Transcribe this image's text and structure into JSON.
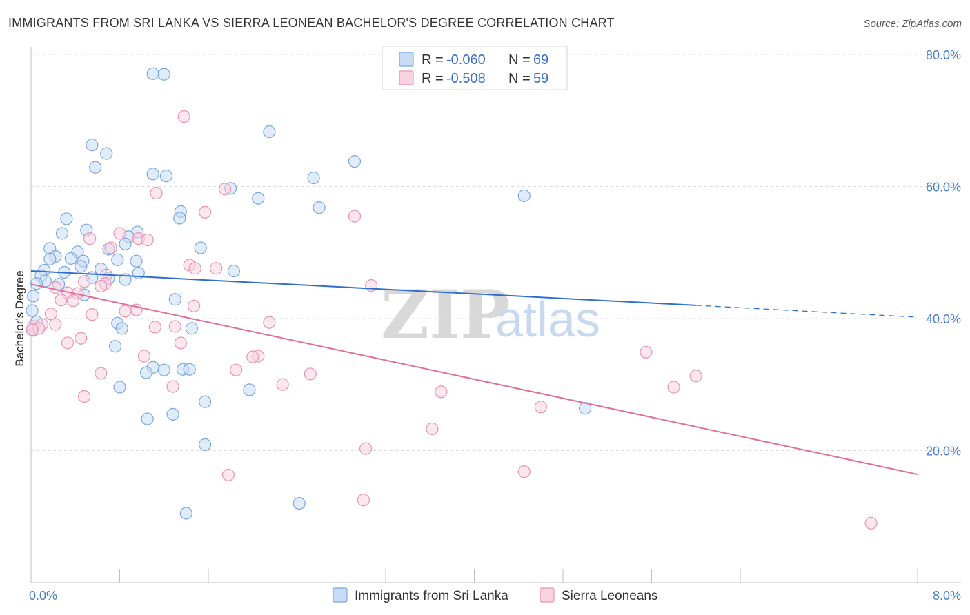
{
  "chart_data": {
    "type": "scatter",
    "title": "IMMIGRANTS FROM SRI LANKA VS SIERRA LEONEAN BACHELOR'S DEGREE CORRELATION CHART",
    "source": "Source: ZipAtlas.com",
    "xlabel": "",
    "ylabel": "Bachelor's Degree",
    "xlim": [
      0,
      8
    ],
    "ylim": [
      0,
      80
    ],
    "x_tick_labels": [
      "0.0%",
      "8.0%"
    ],
    "y_ticks": [
      20,
      40,
      60,
      80
    ],
    "y_tick_labels": [
      "20.0%",
      "40.0%",
      "60.0%",
      "80.0%"
    ],
    "grid": "horizontal dashed",
    "watermark": {
      "zip": "ZIP",
      "atlas": "atlas"
    },
    "legend": {
      "position": "top-center",
      "entries": [
        {
          "name": "Immigrants from Sri Lanka",
          "r_label": "R =",
          "r_value": "-0.060",
          "n_label": "N =",
          "n_value": "69",
          "color": "#7aa7e0",
          "fill": "#c9dcf5"
        },
        {
          "name": "Sierra Leoneans",
          "r_label": "R =",
          "r_value": "-0.508",
          "n_label": "N =",
          "n_value": "59",
          "color": "#e893b0",
          "fill": "#f9d3e0"
        }
      ]
    },
    "series": [
      {
        "name": "Immigrants from Sri Lanka",
        "color": "#7aa7e0",
        "trend": {
          "x": [
            0,
            6.0
          ],
          "y": [
            47.2,
            42.0
          ],
          "dashed_to": [
            8.0,
            40.2
          ],
          "color": "#2f6fcc"
        },
        "points": [
          [
            1.1,
            77.1
          ],
          [
            1.2,
            77.0
          ],
          [
            0.55,
            66.3
          ],
          [
            0.68,
            65.0
          ],
          [
            0.58,
            62.9
          ],
          [
            1.1,
            61.9
          ],
          [
            1.22,
            61.6
          ],
          [
            2.15,
            68.3
          ],
          [
            2.92,
            63.8
          ],
          [
            1.8,
            59.7
          ],
          [
            2.05,
            58.2
          ],
          [
            2.55,
            61.3
          ],
          [
            2.6,
            56.8
          ],
          [
            4.45,
            58.6
          ],
          [
            1.35,
            56.2
          ],
          [
            1.34,
            55.2
          ],
          [
            0.32,
            55.1
          ],
          [
            0.5,
            53.4
          ],
          [
            0.28,
            52.9
          ],
          [
            0.96,
            53.1
          ],
          [
            0.88,
            52.4
          ],
          [
            0.85,
            51.3
          ],
          [
            1.53,
            50.7
          ],
          [
            0.17,
            50.6
          ],
          [
            0.7,
            50.5
          ],
          [
            0.42,
            50.1
          ],
          [
            0.22,
            49.4
          ],
          [
            0.17,
            49.0
          ],
          [
            0.36,
            49.1
          ],
          [
            0.47,
            48.7
          ],
          [
            0.78,
            48.9
          ],
          [
            0.95,
            48.7
          ],
          [
            0.45,
            47.9
          ],
          [
            0.63,
            47.5
          ],
          [
            0.12,
            47.3
          ],
          [
            0.3,
            47.0
          ],
          [
            0.97,
            46.9
          ],
          [
            1.83,
            47.2
          ],
          [
            0.09,
            46.5
          ],
          [
            0.55,
            46.2
          ],
          [
            0.7,
            46.1
          ],
          [
            0.85,
            45.9
          ],
          [
            0.13,
            45.7
          ],
          [
            0.05,
            45.3
          ],
          [
            0.25,
            45.2
          ],
          [
            0.48,
            43.6
          ],
          [
            1.3,
            42.9
          ],
          [
            0.02,
            43.4
          ],
          [
            0.01,
            41.2
          ],
          [
            0.05,
            39.5
          ],
          [
            0.78,
            39.3
          ],
          [
            0.82,
            38.5
          ],
          [
            1.45,
            38.5
          ],
          [
            0.02,
            38.2
          ],
          [
            0.76,
            35.8
          ],
          [
            1.1,
            32.6
          ],
          [
            1.04,
            31.8
          ],
          [
            1.2,
            32.2
          ],
          [
            1.37,
            32.3
          ],
          [
            1.43,
            32.3
          ],
          [
            0.8,
            29.6
          ],
          [
            1.97,
            29.2
          ],
          [
            1.57,
            27.4
          ],
          [
            5.0,
            26.4
          ],
          [
            1.28,
            25.5
          ],
          [
            1.05,
            24.8
          ],
          [
            1.57,
            20.9
          ],
          [
            2.42,
            12.0
          ],
          [
            1.4,
            10.5
          ]
        ]
      },
      {
        "name": "Sierra Leoneans",
        "color": "#e893b0",
        "trend": {
          "x": [
            0,
            8.0
          ],
          "y": [
            45.2,
            16.4
          ],
          "color": "#e06f9a"
        },
        "points": [
          [
            1.38,
            70.6
          ],
          [
            1.75,
            59.6
          ],
          [
            1.13,
            59.0
          ],
          [
            1.57,
            56.1
          ],
          [
            2.92,
            55.5
          ],
          [
            0.8,
            52.9
          ],
          [
            0.53,
            52.1
          ],
          [
            0.97,
            52.1
          ],
          [
            1.05,
            51.9
          ],
          [
            0.72,
            50.7
          ],
          [
            1.43,
            48.1
          ],
          [
            1.48,
            47.6
          ],
          [
            1.67,
            47.6
          ],
          [
            0.68,
            46.6
          ],
          [
            0.48,
            45.6
          ],
          [
            0.67,
            45.3
          ],
          [
            0.63,
            44.9
          ],
          [
            3.07,
            45.0
          ],
          [
            0.22,
            44.7
          ],
          [
            0.33,
            43.9
          ],
          [
            0.42,
            43.8
          ],
          [
            0.27,
            42.8
          ],
          [
            0.38,
            42.7
          ],
          [
            1.47,
            41.9
          ],
          [
            0.95,
            41.3
          ],
          [
            0.85,
            41.1
          ],
          [
            0.18,
            40.7
          ],
          [
            0.55,
            40.6
          ],
          [
            0.22,
            39.1
          ],
          [
            0.02,
            38.8
          ],
          [
            1.12,
            38.7
          ],
          [
            1.3,
            38.8
          ],
          [
            2.15,
            39.4
          ],
          [
            0.1,
            39.1
          ],
          [
            0.07,
            38.5
          ],
          [
            0.45,
            37.0
          ],
          [
            0.33,
            36.3
          ],
          [
            1.35,
            36.3
          ],
          [
            1.02,
            34.3
          ],
          [
            2.05,
            34.3
          ],
          [
            2.0,
            34.2
          ],
          [
            5.55,
            34.9
          ],
          [
            1.85,
            32.2
          ],
          [
            0.63,
            31.7
          ],
          [
            2.52,
            31.6
          ],
          [
            6.0,
            31.3
          ],
          [
            2.27,
            30.0
          ],
          [
            1.28,
            29.7
          ],
          [
            5.8,
            29.6
          ],
          [
            3.7,
            28.9
          ],
          [
            0.48,
            28.2
          ],
          [
            4.6,
            26.6
          ],
          [
            3.62,
            23.3
          ],
          [
            3.02,
            20.3
          ],
          [
            4.45,
            16.8
          ],
          [
            1.78,
            16.3
          ],
          [
            3.0,
            12.5
          ],
          [
            7.58,
            9.0
          ],
          [
            0.01,
            38.3
          ]
        ]
      }
    ]
  },
  "bottom_legend": {
    "items": [
      {
        "label": "Immigrants from Sri Lanka"
      },
      {
        "label": "Sierra Leoneans"
      }
    ]
  }
}
